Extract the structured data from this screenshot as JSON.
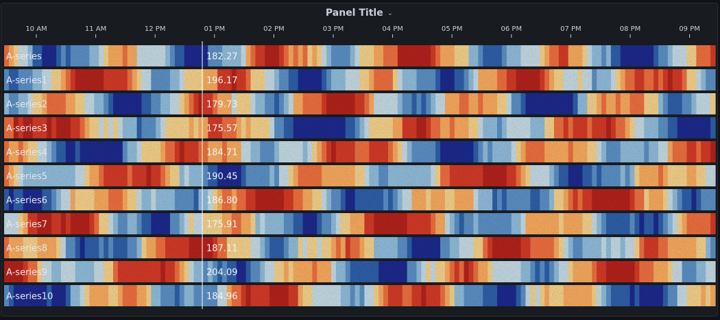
{
  "panel": {
    "title": "Panel Title",
    "title_menu_icon": "chevron-down-icon"
  },
  "chart_data": {
    "type": "heatmap",
    "title": "Panel Title",
    "x_ticks": [
      "10 AM",
      "11 AM",
      "12 PM",
      "01 PM",
      "02 PM",
      "03 PM",
      "04 PM",
      "05 PM",
      "06 PM",
      "07 PM",
      "08 PM",
      "09 PM"
    ],
    "color_scheme": [
      "#1d2a8c",
      "#2f5fa8",
      "#5b8fc3",
      "#8fbbd9",
      "#c4d9e3",
      "#f3d08a",
      "#f6a95e",
      "#ec6f3f",
      "#d23a27",
      "#b2231c"
    ],
    "hover_cursor_time": "between 12 PM and 01 PM",
    "series": [
      {
        "name": "A-series",
        "value_label": "182.27",
        "seed": 1
      },
      {
        "name": "A-series1",
        "value_label": "196.17",
        "seed": 2
      },
      {
        "name": "A-series2",
        "value_label": "179.73",
        "seed": 3
      },
      {
        "name": "A-series3",
        "value_label": "175.57",
        "seed": 4
      },
      {
        "name": "A-series4",
        "value_label": "184.71",
        "seed": 5
      },
      {
        "name": "A-series5",
        "value_label": "190.45",
        "seed": 6
      },
      {
        "name": "A-series6",
        "value_label": "186.80",
        "seed": 7
      },
      {
        "name": "A-series7",
        "value_label": "175.91",
        "seed": 8
      },
      {
        "name": "A-series8",
        "value_label": "187.11",
        "seed": 9
      },
      {
        "name": "A-series9",
        "value_label": "204.09",
        "seed": 10
      },
      {
        "name": "A-series10",
        "value_label": "184.96",
        "seed": 11
      }
    ]
  }
}
